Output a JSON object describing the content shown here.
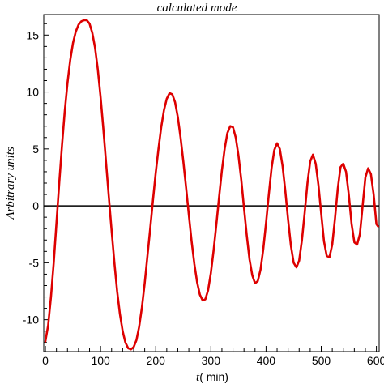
{
  "chart_data": {
    "type": "line",
    "title": "calculated  mode",
    "xlabel_var": "t",
    "xlabel_unit": "( min)",
    "ylabel": "Arbitrary  units",
    "xlim": [
      -3,
      605
    ],
    "ylim": [
      -12.8,
      16.8
    ],
    "x_ticks": [
      0,
      100,
      200,
      300,
      400,
      500,
      600
    ],
    "y_ticks": [
      -10,
      -5,
      0,
      5,
      10,
      15
    ],
    "zero_line": true,
    "series": [
      {
        "color": "#dd0000",
        "points": [
          [
            0,
            -11.9
          ],
          [
            5,
            -10.5
          ],
          [
            10,
            -8.0
          ],
          [
            15,
            -5.0
          ],
          [
            20,
            -1.5
          ],
          [
            25,
            2.0
          ],
          [
            30,
            5.3
          ],
          [
            35,
            8.3
          ],
          [
            40,
            10.8
          ],
          [
            45,
            12.8
          ],
          [
            50,
            14.3
          ],
          [
            55,
            15.3
          ],
          [
            60,
            15.9
          ],
          [
            65,
            16.2
          ],
          [
            70,
            16.3
          ],
          [
            75,
            16.3
          ],
          [
            80,
            16.0
          ],
          [
            85,
            15.2
          ],
          [
            90,
            13.9
          ],
          [
            95,
            12.0
          ],
          [
            100,
            9.6
          ],
          [
            105,
            6.8
          ],
          [
            110,
            3.8
          ],
          [
            115,
            0.8
          ],
          [
            120,
            -2.2
          ],
          [
            125,
            -5.0
          ],
          [
            130,
            -7.5
          ],
          [
            135,
            -9.5
          ],
          [
            140,
            -11.0
          ],
          [
            145,
            -12.0
          ],
          [
            150,
            -12.5
          ],
          [
            155,
            -12.6
          ],
          [
            160,
            -12.4
          ],
          [
            165,
            -11.8
          ],
          [
            170,
            -10.6
          ],
          [
            175,
            -8.9
          ],
          [
            180,
            -6.8
          ],
          [
            185,
            -4.4
          ],
          [
            190,
            -2.0
          ],
          [
            195,
            0.5
          ],
          [
            200,
            2.9
          ],
          [
            205,
            5.0
          ],
          [
            210,
            6.9
          ],
          [
            215,
            8.4
          ],
          [
            220,
            9.4
          ],
          [
            225,
            9.9
          ],
          [
            230,
            9.8
          ],
          [
            235,
            9.1
          ],
          [
            240,
            7.8
          ],
          [
            245,
            6.0
          ],
          [
            250,
            3.9
          ],
          [
            255,
            1.6
          ],
          [
            260,
            -0.8
          ],
          [
            265,
            -3.1
          ],
          [
            270,
            -5.1
          ],
          [
            275,
            -6.7
          ],
          [
            280,
            -7.8
          ],
          [
            285,
            -8.3
          ],
          [
            290,
            -8.2
          ],
          [
            295,
            -7.4
          ],
          [
            300,
            -5.9
          ],
          [
            305,
            -3.9
          ],
          [
            310,
            -1.6
          ],
          [
            315,
            0.8
          ],
          [
            320,
            3.1
          ],
          [
            325,
            5.0
          ],
          [
            330,
            6.4
          ],
          [
            335,
            7.0
          ],
          [
            340,
            6.9
          ],
          [
            345,
            6.0
          ],
          [
            350,
            4.4
          ],
          [
            355,
            2.3
          ],
          [
            360,
            -0.2
          ],
          [
            365,
            -2.6
          ],
          [
            370,
            -4.7
          ],
          [
            375,
            -6.1
          ],
          [
            380,
            -6.8
          ],
          [
            385,
            -6.6
          ],
          [
            390,
            -5.6
          ],
          [
            395,
            -3.8
          ],
          [
            400,
            -1.5
          ],
          [
            405,
            1.0
          ],
          [
            410,
            3.3
          ],
          [
            415,
            4.9
          ],
          [
            420,
            5.5
          ],
          [
            425,
            5.0
          ],
          [
            430,
            3.5
          ],
          [
            435,
            1.3
          ],
          [
            440,
            -1.2
          ],
          [
            445,
            -3.5
          ],
          [
            450,
            -5.0
          ],
          [
            455,
            -5.4
          ],
          [
            460,
            -4.8
          ],
          [
            465,
            -3.0
          ],
          [
            470,
            -0.6
          ],
          [
            475,
            2.0
          ],
          [
            480,
            3.9
          ],
          [
            485,
            4.5
          ],
          [
            490,
            3.7
          ],
          [
            495,
            1.8
          ],
          [
            500,
            -0.7
          ],
          [
            505,
            -3.1
          ],
          [
            510,
            -4.4
          ],
          [
            515,
            -4.5
          ],
          [
            520,
            -3.4
          ],
          [
            525,
            -1.1
          ],
          [
            530,
            1.5
          ],
          [
            535,
            3.4
          ],
          [
            540,
            3.7
          ],
          [
            545,
            3.0
          ],
          [
            550,
            1.0
          ],
          [
            555,
            -1.6
          ],
          [
            560,
            -3.2
          ],
          [
            565,
            -3.4
          ],
          [
            570,
            -2.5
          ],
          [
            575,
            0.0
          ],
          [
            580,
            2.5
          ],
          [
            585,
            3.3
          ],
          [
            590,
            2.8
          ],
          [
            595,
            1.0
          ],
          [
            600,
            -1.6
          ],
          [
            603,
            -1.8
          ]
        ]
      }
    ]
  }
}
